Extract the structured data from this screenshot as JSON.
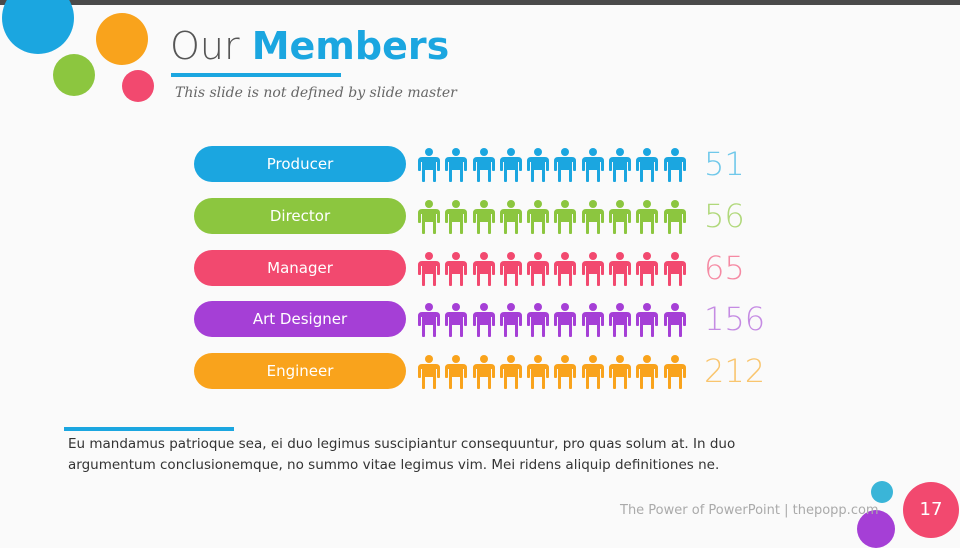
{
  "slide": {
    "title_light": "Our ",
    "title_bold": "Members",
    "subtitle": "This slide is not defined by slide master",
    "body_text": "Eu mandamus patrioque sea, ei duo legimus suscipiantur consequuntur, pro quas solum at. In duo argumentum conclusionemque, no summo vitae legimus vim. Mei ridens aliquip definitiones ne.",
    "footer": "The Power of PowerPoint | thepopp.com",
    "page_number": "17"
  },
  "members": [
    {
      "label": "Producer",
      "value": "51",
      "color": "#1ba6e0",
      "value_color": "#6fc8ea"
    },
    {
      "label": "Director",
      "value": "56",
      "color": "#8cc63f",
      "value_color": "#b0d87a"
    },
    {
      "label": "Manager",
      "value": "65",
      "color": "#f2496f",
      "value_color": "#f58aa3"
    },
    {
      "label": "Art Designer",
      "value": "156",
      "color": "#a53fd6",
      "value_color": "#c58be3"
    },
    {
      "label": "Engineer",
      "value": "212",
      "color": "#f9a31c",
      "value_color": "#f9c56e"
    }
  ],
  "icons_per_row": 10,
  "icon": "person-icon",
  "decor_colors": {
    "blue": "#1ba6e0",
    "orange": "#f9a31c",
    "green": "#8cc63f",
    "pink": "#f2496f",
    "purple": "#a53fd6",
    "teal": "#3ab5d8"
  }
}
